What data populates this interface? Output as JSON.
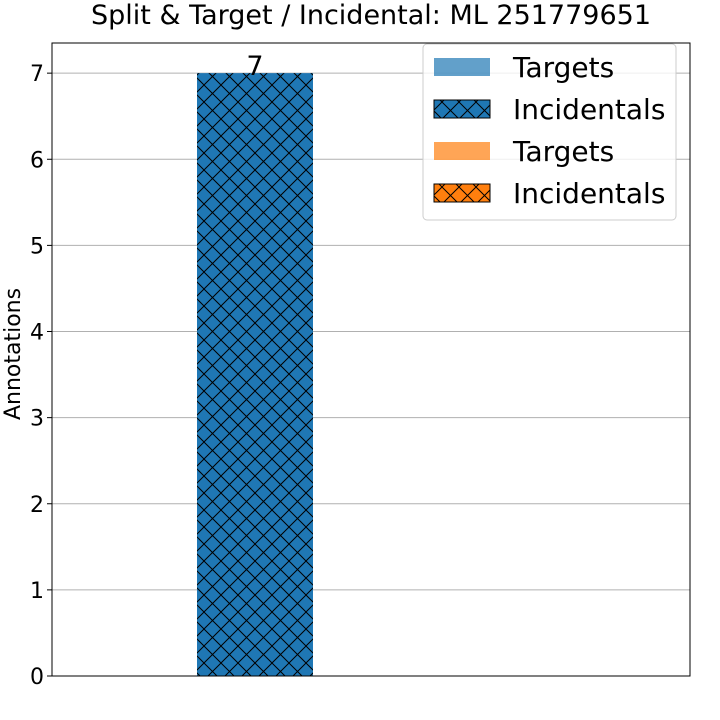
{
  "chart_data": {
    "type": "bar",
    "title": "Split & Target / Incidental: ML 251779651",
    "xlabel": "",
    "ylabel": "Annotations",
    "ylim": [
      0,
      7.35
    ],
    "yticks": [
      0,
      1,
      2,
      3,
      4,
      5,
      6,
      7
    ],
    "grid": "horizontal",
    "legend_placement": "top-right",
    "categories": [
      "",
      ""
    ],
    "series": [
      {
        "name": "Targets",
        "color": "#1f77b4",
        "alpha": 0.7,
        "hatch": "none",
        "values": [
          0,
          0
        ]
      },
      {
        "name": "Incidentals",
        "color": "#1f77b4",
        "alpha": 1.0,
        "hatch": "cross",
        "values": [
          7,
          0
        ]
      },
      {
        "name": "Targets",
        "color": "#ff7f0e",
        "alpha": 0.7,
        "hatch": "none",
        "values": [
          0,
          0
        ]
      },
      {
        "name": "Incidentals",
        "color": "#ff7f0e",
        "alpha": 1.0,
        "hatch": "cross",
        "values": [
          0,
          0
        ]
      }
    ],
    "data_labels": [
      "7"
    ]
  }
}
